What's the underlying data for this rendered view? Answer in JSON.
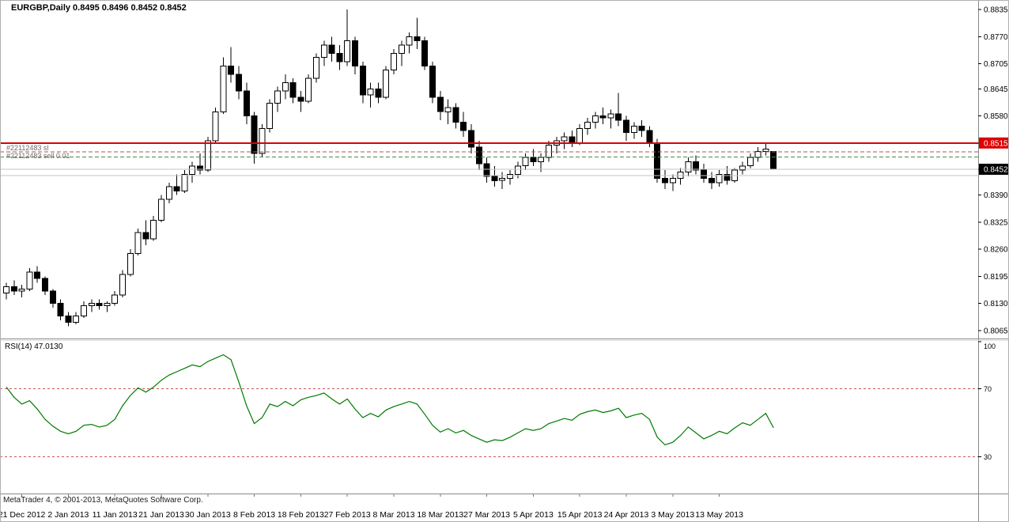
{
  "header": {
    "title": "EURGBP,Daily 0.8495 0.8496 0.8452 0.8452"
  },
  "symbol": {
    "name": "EURGBP",
    "period": "Daily",
    "open": "0.8495",
    "high": "0.8496",
    "low": "0.8452",
    "close": "0.8452"
  },
  "orders": {
    "sl_label": "#22112483 sl",
    "sell_label": "#22112483 sell 0.01"
  },
  "footer": {
    "copyright": "MetaTrader 4, © 2001-2013, MetaQuotes Software Corp."
  },
  "colors": {
    "background": "#ffffff",
    "candle_up": "#ffffff",
    "candle_down": "#000000",
    "candle_outline": "#000000",
    "resistance_line": "#dd0000",
    "price_tag_red": "#dd0000",
    "price_tag_black": "#000000",
    "rsi_line": "#007a00",
    "rsi_levels": "#cc5555",
    "separators": "#888888"
  },
  "chart_data": {
    "type": "candlestick",
    "title": "EURGBP,Daily",
    "ohlc_display": {
      "open": 0.8495,
      "high": 0.8496,
      "low": 0.8452,
      "close": 0.8452
    },
    "ylim": [
      0.8046,
      0.8858
    ],
    "grid": false,
    "price_axis": [
      {
        "label": "0.8835",
        "value": 0.8835
      },
      {
        "label": "0.8770",
        "value": 0.877
      },
      {
        "label": "0.8705",
        "value": 0.8705
      },
      {
        "label": "0.8645",
        "value": 0.8645
      },
      {
        "label": "0.8580",
        "value": 0.858
      },
      {
        "label": "0.8515",
        "value": 0.8515,
        "bg": "#dd0000"
      },
      {
        "label": "0.8452",
        "value": 0.8452,
        "bg": "#000000"
      },
      {
        "label": "0.8390",
        "value": 0.839
      },
      {
        "label": "0.8325",
        "value": 0.8325
      },
      {
        "label": "0.8260",
        "value": 0.826
      },
      {
        "label": "0.8195",
        "value": 0.8195
      },
      {
        "label": "0.8130",
        "value": 0.813
      },
      {
        "label": "0.8065",
        "value": 0.8065
      }
    ],
    "dates": [
      "21 Dec 2012",
      "2 Jan 2013",
      "11 Jan 2013",
      "21 Jan 2013",
      "30 Jan 2013",
      "8 Feb 2013",
      "18 Feb 2013",
      "27 Feb 2013",
      "8 Mar 2013",
      "18 Mar 2013",
      "27 Mar 2013",
      "5 Apr 2013",
      "15 Apr 2013",
      "24 Apr 2013",
      "3 May 2013",
      "13 May 2013"
    ],
    "date_tick_indices": [
      2,
      8,
      14,
      20,
      26,
      32,
      38,
      44,
      50,
      56,
      62,
      68,
      74,
      80,
      86,
      92
    ],
    "price_lines": [
      {
        "name": "resistance-line",
        "price": 0.8515,
        "style": "solid",
        "color": "#dd0000",
        "width": 2
      },
      {
        "name": "stop-loss-line",
        "price": 0.8494,
        "style": "dash",
        "color": "#b85050",
        "width": 1
      },
      {
        "name": "sell-order-line",
        "price": 0.8481,
        "style": "dash",
        "color": "#4a8a4a",
        "width": 1
      },
      {
        "name": "bid-line",
        "price": 0.8452,
        "style": "solid",
        "color": "#c4c4c4",
        "width": 1
      },
      {
        "name": "support-line",
        "price": 0.8437,
        "style": "solid",
        "color": "#c4c4c4",
        "width": 1
      }
    ],
    "candles": [
      [
        0.8155,
        0.818,
        0.814,
        0.817
      ],
      [
        0.817,
        0.8185,
        0.815,
        0.816
      ],
      [
        0.816,
        0.8175,
        0.8145,
        0.8165
      ],
      [
        0.8165,
        0.8215,
        0.816,
        0.8205
      ],
      [
        0.8205,
        0.822,
        0.818,
        0.819
      ],
      [
        0.819,
        0.8195,
        0.815,
        0.816
      ],
      [
        0.816,
        0.8165,
        0.812,
        0.813
      ],
      [
        0.813,
        0.814,
        0.809,
        0.81
      ],
      [
        0.81,
        0.811,
        0.8075,
        0.8085
      ],
      [
        0.8085,
        0.811,
        0.808,
        0.81
      ],
      [
        0.81,
        0.8135,
        0.8095,
        0.8125
      ],
      [
        0.8125,
        0.814,
        0.811,
        0.813
      ],
      [
        0.813,
        0.814,
        0.8115,
        0.8125
      ],
      [
        0.8125,
        0.8135,
        0.811,
        0.813
      ],
      [
        0.813,
        0.816,
        0.8125,
        0.815
      ],
      [
        0.815,
        0.821,
        0.8145,
        0.82
      ],
      [
        0.82,
        0.826,
        0.8195,
        0.825
      ],
      [
        0.825,
        0.831,
        0.8245,
        0.83
      ],
      [
        0.83,
        0.833,
        0.827,
        0.8285
      ],
      [
        0.8285,
        0.834,
        0.828,
        0.833
      ],
      [
        0.833,
        0.839,
        0.8325,
        0.838
      ],
      [
        0.838,
        0.842,
        0.837,
        0.841
      ],
      [
        0.841,
        0.844,
        0.839,
        0.84
      ],
      [
        0.84,
        0.845,
        0.8395,
        0.844
      ],
      [
        0.844,
        0.847,
        0.842,
        0.846
      ],
      [
        0.846,
        0.849,
        0.844,
        0.845
      ],
      [
        0.845,
        0.853,
        0.8445,
        0.852
      ],
      [
        0.852,
        0.86,
        0.8515,
        0.859
      ],
      [
        0.859,
        0.872,
        0.8585,
        0.87
      ],
      [
        0.87,
        0.8745,
        0.866,
        0.868
      ],
      [
        0.868,
        0.87,
        0.862,
        0.864
      ],
      [
        0.864,
        0.866,
        0.856,
        0.858
      ],
      [
        0.858,
        0.859,
        0.8465,
        0.849
      ],
      [
        0.849,
        0.856,
        0.848,
        0.855
      ],
      [
        0.855,
        0.862,
        0.854,
        0.861
      ],
      [
        0.861,
        0.865,
        0.859,
        0.864
      ],
      [
        0.864,
        0.868,
        0.862,
        0.866
      ],
      [
        0.866,
        0.867,
        0.861,
        0.8625
      ],
      [
        0.8625,
        0.864,
        0.859,
        0.8615
      ],
      [
        0.8615,
        0.868,
        0.861,
        0.867
      ],
      [
        0.867,
        0.873,
        0.866,
        0.872
      ],
      [
        0.872,
        0.876,
        0.87,
        0.875
      ],
      [
        0.875,
        0.877,
        0.871,
        0.873
      ],
      [
        0.873,
        0.875,
        0.869,
        0.871
      ],
      [
        0.871,
        0.8835,
        0.87,
        0.876
      ],
      [
        0.876,
        0.877,
        0.868,
        0.87
      ],
      [
        0.87,
        0.871,
        0.861,
        0.863
      ],
      [
        0.863,
        0.866,
        0.86,
        0.8645
      ],
      [
        0.8645,
        0.866,
        0.861,
        0.8625
      ],
      [
        0.8625,
        0.87,
        0.862,
        0.869
      ],
      [
        0.869,
        0.874,
        0.868,
        0.873
      ],
      [
        0.873,
        0.876,
        0.87,
        0.875
      ],
      [
        0.875,
        0.878,
        0.873,
        0.877
      ],
      [
        0.877,
        0.8815,
        0.874,
        0.876
      ],
      [
        0.876,
        0.877,
        0.869,
        0.87
      ],
      [
        0.87,
        0.871,
        0.861,
        0.8625
      ],
      [
        0.8625,
        0.864,
        0.857,
        0.859
      ],
      [
        0.859,
        0.862,
        0.856,
        0.86
      ],
      [
        0.86,
        0.861,
        0.855,
        0.8565
      ],
      [
        0.8565,
        0.859,
        0.853,
        0.8545
      ],
      [
        0.8545,
        0.856,
        0.849,
        0.8505
      ],
      [
        0.8505,
        0.852,
        0.845,
        0.8465
      ],
      [
        0.8465,
        0.848,
        0.842,
        0.8435
      ],
      [
        0.8435,
        0.846,
        0.841,
        0.8425
      ],
      [
        0.8425,
        0.8445,
        0.8405,
        0.843
      ],
      [
        0.843,
        0.845,
        0.8415,
        0.844
      ],
      [
        0.844,
        0.847,
        0.843,
        0.846
      ],
      [
        0.846,
        0.849,
        0.845,
        0.848
      ],
      [
        0.848,
        0.85,
        0.846,
        0.847
      ],
      [
        0.847,
        0.849,
        0.8445,
        0.848
      ],
      [
        0.848,
        0.852,
        0.847,
        0.851
      ],
      [
        0.851,
        0.853,
        0.849,
        0.852
      ],
      [
        0.852,
        0.854,
        0.85,
        0.853
      ],
      [
        0.853,
        0.8545,
        0.8505,
        0.8515
      ],
      [
        0.8515,
        0.856,
        0.851,
        0.855
      ],
      [
        0.855,
        0.8575,
        0.8535,
        0.8565
      ],
      [
        0.8565,
        0.859,
        0.855,
        0.858
      ],
      [
        0.858,
        0.86,
        0.856,
        0.8575
      ],
      [
        0.8575,
        0.8595,
        0.855,
        0.8585
      ],
      [
        0.8585,
        0.8635,
        0.8555,
        0.857
      ],
      [
        0.857,
        0.858,
        0.852,
        0.854
      ],
      [
        0.854,
        0.8565,
        0.8525,
        0.8555
      ],
      [
        0.8555,
        0.857,
        0.853,
        0.8545
      ],
      [
        0.8545,
        0.8555,
        0.8505,
        0.8515
      ],
      [
        0.8515,
        0.8525,
        0.842,
        0.843
      ],
      [
        0.843,
        0.845,
        0.8405,
        0.842
      ],
      [
        0.842,
        0.844,
        0.84,
        0.843
      ],
      [
        0.843,
        0.8455,
        0.8415,
        0.8445
      ],
      [
        0.8445,
        0.848,
        0.8435,
        0.847
      ],
      [
        0.847,
        0.8485,
        0.844,
        0.845
      ],
      [
        0.845,
        0.8465,
        0.842,
        0.843
      ],
      [
        0.843,
        0.8445,
        0.8405,
        0.842
      ],
      [
        0.842,
        0.845,
        0.841,
        0.844
      ],
      [
        0.844,
        0.846,
        0.8415,
        0.8425
      ],
      [
        0.8425,
        0.8455,
        0.842,
        0.845
      ],
      [
        0.845,
        0.847,
        0.844,
        0.846
      ],
      [
        0.846,
        0.849,
        0.8455,
        0.848
      ],
      [
        0.848,
        0.8505,
        0.847,
        0.8495
      ],
      [
        0.8495,
        0.8515,
        0.8485,
        0.85
      ],
      [
        0.8495,
        0.8496,
        0.8452,
        0.8452
      ]
    ],
    "rsi": {
      "label": "RSI(14) 47.0130",
      "name": "RSI",
      "period": 14,
      "value": 47.013,
      "ylim": [
        0,
        100
      ],
      "levels": [
        70,
        30
      ],
      "scale": [
        "100",
        "70",
        "30"
      ],
      "color": "#007a00",
      "level_color": "#cc5555",
      "values": [
        71,
        65,
        61,
        63,
        58,
        52,
        48,
        45,
        43.5,
        45,
        48.5,
        49,
        47.5,
        48.5,
        52,
        60,
        66,
        70.5,
        68,
        71,
        75,
        78,
        80,
        82,
        84,
        83,
        86,
        88,
        90,
        87,
        74,
        60,
        49.5,
        53,
        61,
        59.5,
        62.5,
        60,
        63.5,
        65,
        66,
        67.5,
        64,
        61,
        64,
        58,
        53,
        55.5,
        53.5,
        57.5,
        59.5,
        61,
        62.5,
        61,
        55,
        48.5,
        44.5,
        46.5,
        44,
        45.5,
        42.5,
        40.5,
        38.5,
        40,
        39.5,
        41.5,
        44,
        46.5,
        45.5,
        46.5,
        49.5,
        51,
        52.5,
        51.5,
        55,
        56.5,
        57.5,
        56,
        57,
        58.5,
        53,
        54.5,
        55.5,
        52,
        41.5,
        37,
        38.5,
        42.5,
        47.5,
        44,
        40.5,
        42.5,
        45,
        43.5,
        47,
        50,
        48.5,
        52,
        55.5,
        47.013
      ]
    }
  }
}
